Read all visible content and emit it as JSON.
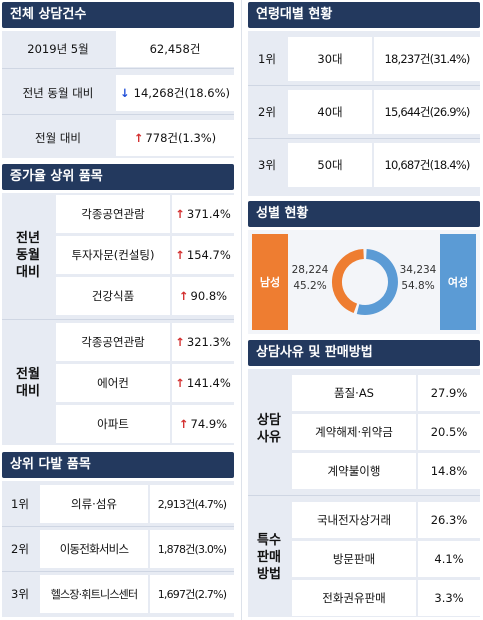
{
  "total": {
    "header": "전체 상담건수",
    "period_label": "2019년 5월",
    "period_value": "62,458건",
    "yoy_label": "전년 동월 대비",
    "yoy_value": "14,268건(18.6%)",
    "mom_label": "전월 대비",
    "mom_value": "778건(1.3%)"
  },
  "growth": {
    "header": "증가율 상위 품목",
    "groups": [
      {
        "label": [
          "전년",
          "동월",
          "대비"
        ],
        "items": [
          {
            "name": "각종공연관람",
            "value": "371.4%"
          },
          {
            "name": "투자자문(컨설팅)",
            "value": "154.7%"
          },
          {
            "name": "건강식품",
            "value": "90.8%"
          }
        ]
      },
      {
        "label": [
          "전월",
          "대비"
        ],
        "items": [
          {
            "name": "각종공연관람",
            "value": "321.3%"
          },
          {
            "name": "에어컨",
            "value": "141.4%"
          },
          {
            "name": "아파트",
            "value": "74.9%"
          }
        ]
      }
    ]
  },
  "top": {
    "header": "상위 다발 품목",
    "rows": [
      {
        "rank": "1위",
        "name": "의류·섬유",
        "value": "2,913건(4.7%)"
      },
      {
        "rank": "2위",
        "name": "이동전화서비스",
        "value": "1,878건(3.0%)"
      },
      {
        "rank": "3위",
        "name": "헬스장·휘트니스센터",
        "value": "1,697건(2.7%)"
      }
    ]
  },
  "age": {
    "header": "연령대별 현황",
    "rows": [
      {
        "rank": "1위",
        "age": "30대",
        "value": "18,237건(31.4%)"
      },
      {
        "rank": "2위",
        "age": "40대",
        "value": "15,644건(26.9%)"
      },
      {
        "rank": "3위",
        "age": "50대",
        "value": "10,687건(18.4%)"
      }
    ]
  },
  "gender": {
    "header": "성별 현황",
    "male_label": "남성",
    "female_label": "여성",
    "male_count": "28,224",
    "male_pct": "45.2%",
    "female_count": "34,234",
    "female_pct": "54.8%",
    "male_share": 0.452,
    "male_color": "#ee7d31",
    "female_color": "#5b9bd5"
  },
  "reason": {
    "header": "상담사유 및 판매방법",
    "groups": [
      {
        "label": [
          "상담",
          "사유"
        ],
        "items": [
          {
            "name": "품질·AS",
            "value": "27.9%"
          },
          {
            "name": "계약해제·위약금",
            "value": "20.5%"
          },
          {
            "name": "계약불이행",
            "value": "14.8%"
          }
        ]
      },
      {
        "label": [
          "특수",
          "판매",
          "방법"
        ],
        "items": [
          {
            "name": "국내전자상거래",
            "value": "26.3%"
          },
          {
            "name": "방문판매",
            "value": "4.1%"
          },
          {
            "name": "전화권유판매",
            "value": "3.3%"
          }
        ]
      }
    ]
  }
}
